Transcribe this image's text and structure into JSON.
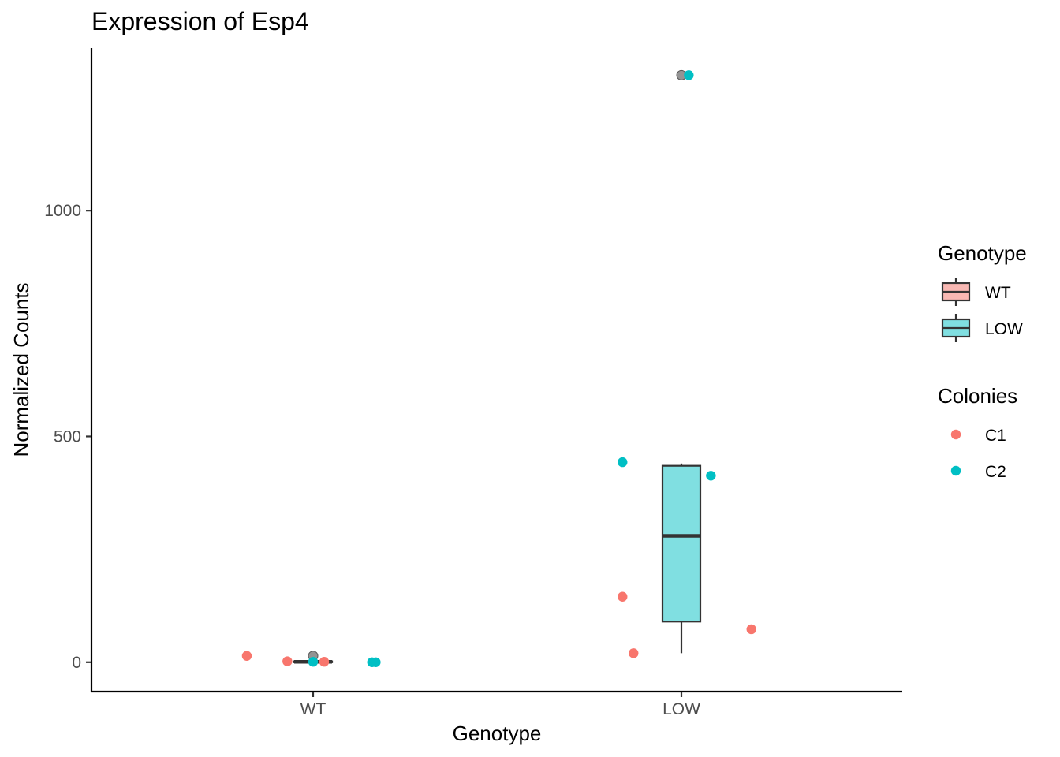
{
  "chart_data": {
    "type": "box",
    "title": "Expression of Esp4",
    "xlabel": "Genotype",
    "ylabel": "Normalized Counts",
    "categories": [
      "WT",
      "LOW"
    ],
    "ylim": [
      -65,
      1360
    ],
    "yticks": [
      0,
      500,
      1000
    ],
    "ytick_labels": [
      "0",
      "500",
      "1000"
    ],
    "grid": false,
    "boxes": [
      {
        "category": "WT",
        "fill": "#f8b8b3",
        "q1": 0,
        "median": 1,
        "q3": 2,
        "whisker_low": 0,
        "whisker_high": 3,
        "outliers": [
          14
        ]
      },
      {
        "category": "LOW",
        "fill": "#80dfe1",
        "q1": 90,
        "median": 280,
        "q3": 435,
        "whisker_low": 20,
        "whisker_high": 440,
        "outliers": [
          1300
        ]
      }
    ],
    "outlier_color": "#808080",
    "points": [
      {
        "category": "WT",
        "jitter": -0.18,
        "y": 14,
        "colony": "C1"
      },
      {
        "category": "WT",
        "jitter": -0.07,
        "y": 2,
        "colony": "C1"
      },
      {
        "category": "WT",
        "jitter": 0.03,
        "y": 1,
        "colony": "C1"
      },
      {
        "category": "WT",
        "jitter": 0.0,
        "y": 1,
        "colony": "C2"
      },
      {
        "category": "WT",
        "jitter": 0.16,
        "y": 0,
        "colony": "C2"
      },
      {
        "category": "WT",
        "jitter": 0.17,
        "y": 0,
        "colony": "C2"
      },
      {
        "category": "LOW",
        "jitter": -0.16,
        "y": 145,
        "colony": "C1"
      },
      {
        "category": "LOW",
        "jitter": -0.13,
        "y": 20,
        "colony": "C1"
      },
      {
        "category": "LOW",
        "jitter": 0.19,
        "y": 73,
        "colony": "C1"
      },
      {
        "category": "LOW",
        "jitter": -0.16,
        "y": 443,
        "colony": "C2"
      },
      {
        "category": "LOW",
        "jitter": 0.08,
        "y": 413,
        "colony": "C2"
      },
      {
        "category": "LOW",
        "jitter": 0.02,
        "y": 1300,
        "colony": "C2"
      }
    ],
    "legend_placement": "right",
    "legends": [
      {
        "title": "Genotype",
        "kind": "box",
        "items": [
          {
            "label": "WT",
            "color": "#f8b8b3"
          },
          {
            "label": "LOW",
            "color": "#80dfe1"
          }
        ]
      },
      {
        "title": "Colonies",
        "kind": "point",
        "items": [
          {
            "label": "C1",
            "color": "#f8766d"
          },
          {
            "label": "C2",
            "color": "#00bfc4"
          }
        ]
      }
    ]
  }
}
